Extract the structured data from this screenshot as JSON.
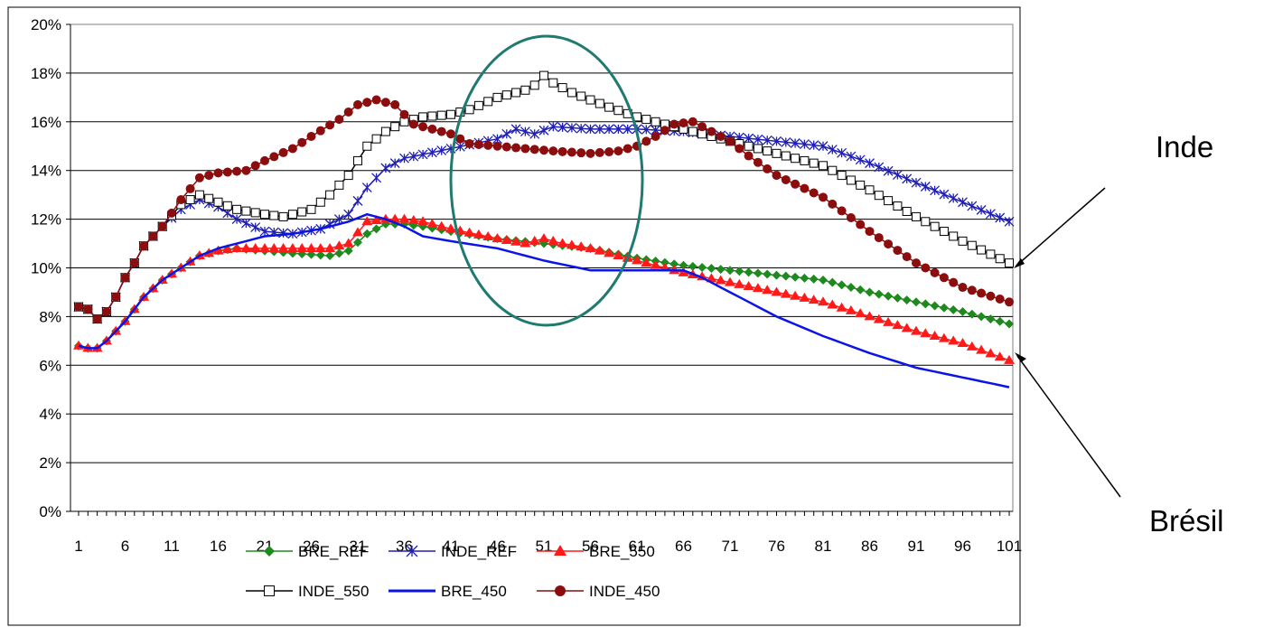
{
  "annotations": {
    "inde": "Inde",
    "bresil": "Brésil"
  },
  "chart_data": {
    "type": "line",
    "title": "",
    "xlabel": "",
    "ylabel": "",
    "ylim": [
      0,
      0.2
    ],
    "yticks": [
      "0%",
      "2%",
      "4%",
      "6%",
      "8%",
      "10%",
      "12%",
      "14%",
      "16%",
      "18%",
      "20%"
    ],
    "xticks": [
      1,
      6,
      11,
      16,
      21,
      26,
      31,
      36,
      41,
      46,
      51,
      56,
      61,
      66,
      71,
      76,
      81,
      86,
      91,
      96,
      101
    ],
    "x": [
      1,
      101
    ],
    "grid": "horizontal",
    "legend_position": "bottom",
    "series": [
      {
        "name": "BRE_REF",
        "color": "#1e8a1e",
        "marker": "diamond",
        "points": [
          [
            1,
            6.8
          ],
          [
            2,
            6.7
          ],
          [
            3,
            6.7
          ],
          [
            4,
            7.0
          ],
          [
            6,
            7.8
          ],
          [
            8,
            8.8
          ],
          [
            10,
            9.5
          ],
          [
            12,
            10.0
          ],
          [
            14,
            10.5
          ],
          [
            16,
            10.7
          ],
          [
            18,
            10.8
          ],
          [
            21,
            10.7
          ],
          [
            24,
            10.6
          ],
          [
            28,
            10.5
          ],
          [
            30,
            10.7
          ],
          [
            32,
            11.4
          ],
          [
            34,
            11.8
          ],
          [
            36,
            11.8
          ],
          [
            38,
            11.7
          ],
          [
            41,
            11.5
          ],
          [
            46,
            11.2
          ],
          [
            51,
            11.0
          ],
          [
            56,
            10.8
          ],
          [
            61,
            10.4
          ],
          [
            66,
            10.1
          ],
          [
            71,
            9.9
          ],
          [
            76,
            9.7
          ],
          [
            81,
            9.5
          ],
          [
            86,
            9.0
          ],
          [
            91,
            8.6
          ],
          [
            96,
            8.2
          ],
          [
            101,
            7.7
          ]
        ]
      },
      {
        "name": "INDE_REF",
        "color": "#1f1fb4",
        "marker": "star",
        "points": [
          [
            1,
            8.4
          ],
          [
            2,
            8.3
          ],
          [
            3,
            7.9
          ],
          [
            4,
            8.2
          ],
          [
            5,
            8.8
          ],
          [
            6,
            9.6
          ],
          [
            7,
            10.2
          ],
          [
            8,
            10.9
          ],
          [
            10,
            11.7
          ],
          [
            12,
            12.4
          ],
          [
            14,
            12.8
          ],
          [
            16,
            12.5
          ],
          [
            18,
            12.0
          ],
          [
            21,
            11.5
          ],
          [
            24,
            11.4
          ],
          [
            27,
            11.6
          ],
          [
            30,
            12.2
          ],
          [
            32,
            13.3
          ],
          [
            34,
            14.1
          ],
          [
            36,
            14.5
          ],
          [
            41,
            14.9
          ],
          [
            46,
            15.3
          ],
          [
            48,
            15.7
          ],
          [
            50,
            15.5
          ],
          [
            52,
            15.8
          ],
          [
            56,
            15.7
          ],
          [
            61,
            15.7
          ],
          [
            66,
            15.6
          ],
          [
            71,
            15.4
          ],
          [
            76,
            15.2
          ],
          [
            81,
            15.0
          ],
          [
            86,
            14.3
          ],
          [
            91,
            13.5
          ],
          [
            96,
            12.7
          ],
          [
            101,
            11.9
          ]
        ]
      },
      {
        "name": "BRE_550",
        "color": "#ff1a1a",
        "marker": "triangle",
        "points": [
          [
            1,
            6.8
          ],
          [
            2,
            6.7
          ],
          [
            3,
            6.7
          ],
          [
            4,
            7.0
          ],
          [
            6,
            7.8
          ],
          [
            8,
            8.8
          ],
          [
            10,
            9.5
          ],
          [
            12,
            10.0
          ],
          [
            14,
            10.5
          ],
          [
            16,
            10.7
          ],
          [
            18,
            10.8
          ],
          [
            21,
            10.8
          ],
          [
            24,
            10.8
          ],
          [
            28,
            10.8
          ],
          [
            30,
            11.0
          ],
          [
            32,
            11.9
          ],
          [
            34,
            12.0
          ],
          [
            36,
            12.0
          ],
          [
            38,
            11.9
          ],
          [
            41,
            11.6
          ],
          [
            46,
            11.2
          ],
          [
            49,
            11.0
          ],
          [
            51,
            11.2
          ],
          [
            53,
            11.0
          ],
          [
            56,
            10.8
          ],
          [
            61,
            10.3
          ],
          [
            66,
            9.8
          ],
          [
            71,
            9.4
          ],
          [
            76,
            9.0
          ],
          [
            81,
            8.6
          ],
          [
            86,
            8.0
          ],
          [
            91,
            7.4
          ],
          [
            96,
            6.9
          ],
          [
            101,
            6.2
          ]
        ]
      },
      {
        "name": "INDE_550",
        "color": "#000000",
        "marker": "square",
        "points": [
          [
            1,
            8.4
          ],
          [
            2,
            8.3
          ],
          [
            3,
            7.9
          ],
          [
            4,
            8.2
          ],
          [
            5,
            8.8
          ],
          [
            6,
            9.6
          ],
          [
            7,
            10.2
          ],
          [
            8,
            10.9
          ],
          [
            10,
            11.7
          ],
          [
            12,
            12.6
          ],
          [
            14,
            13.0
          ],
          [
            16,
            12.7
          ],
          [
            18,
            12.4
          ],
          [
            21,
            12.2
          ],
          [
            23,
            12.1
          ],
          [
            26,
            12.4
          ],
          [
            28,
            13.0
          ],
          [
            30,
            13.8
          ],
          [
            32,
            15.0
          ],
          [
            34,
            15.6
          ],
          [
            36,
            16.0
          ],
          [
            38,
            16.2
          ],
          [
            41,
            16.3
          ],
          [
            43,
            16.5
          ],
          [
            46,
            17.0
          ],
          [
            49,
            17.3
          ],
          [
            50,
            17.5
          ],
          [
            51,
            17.9
          ],
          [
            52,
            17.6
          ],
          [
            54,
            17.2
          ],
          [
            56,
            16.9
          ],
          [
            58,
            16.6
          ],
          [
            61,
            16.2
          ],
          [
            66,
            15.7
          ],
          [
            71,
            15.2
          ],
          [
            76,
            14.7
          ],
          [
            81,
            14.2
          ],
          [
            86,
            13.2
          ],
          [
            91,
            12.1
          ],
          [
            96,
            11.1
          ],
          [
            101,
            10.2
          ]
        ]
      },
      {
        "name": "BRE_450",
        "color": "#0a14e6",
        "marker": "none",
        "points": [
          [
            1,
            6.8
          ],
          [
            2,
            6.7
          ],
          [
            3,
            6.7
          ],
          [
            4,
            7.0
          ],
          [
            6,
            7.8
          ],
          [
            8,
            8.8
          ],
          [
            10,
            9.5
          ],
          [
            12,
            10.0
          ],
          [
            14,
            10.5
          ],
          [
            16,
            10.8
          ],
          [
            18,
            11.0
          ],
          [
            21,
            11.3
          ],
          [
            24,
            11.4
          ],
          [
            27,
            11.6
          ],
          [
            30,
            11.9
          ],
          [
            32,
            12.2
          ],
          [
            34,
            12.0
          ],
          [
            36,
            11.7
          ],
          [
            38,
            11.3
          ],
          [
            41,
            11.1
          ],
          [
            46,
            10.8
          ],
          [
            51,
            10.3
          ],
          [
            56,
            9.9
          ],
          [
            61,
            9.9
          ],
          [
            66,
            9.9
          ],
          [
            68,
            9.6
          ],
          [
            71,
            9.0
          ],
          [
            76,
            8.0
          ],
          [
            81,
            7.2
          ],
          [
            86,
            6.5
          ],
          [
            91,
            5.9
          ],
          [
            96,
            5.5
          ],
          [
            101,
            5.1
          ]
        ]
      },
      {
        "name": "INDE_450",
        "color": "#8b0d0d",
        "marker": "circle",
        "points": [
          [
            1,
            8.4
          ],
          [
            2,
            8.3
          ],
          [
            3,
            7.9
          ],
          [
            4,
            8.2
          ],
          [
            5,
            8.8
          ],
          [
            6,
            9.6
          ],
          [
            7,
            10.2
          ],
          [
            8,
            10.9
          ],
          [
            10,
            11.7
          ],
          [
            12,
            12.8
          ],
          [
            14,
            13.7
          ],
          [
            16,
            13.9
          ],
          [
            19,
            14.0
          ],
          [
            21,
            14.4
          ],
          [
            24,
            14.9
          ],
          [
            26,
            15.4
          ],
          [
            29,
            16.1
          ],
          [
            31,
            16.7
          ],
          [
            33,
            16.9
          ],
          [
            35,
            16.7
          ],
          [
            37,
            15.9
          ],
          [
            41,
            15.5
          ],
          [
            43,
            15.1
          ],
          [
            46,
            15.0
          ],
          [
            49,
            14.9
          ],
          [
            52,
            14.8
          ],
          [
            56,
            14.7
          ],
          [
            59,
            14.8
          ],
          [
            61,
            15.0
          ],
          [
            63,
            15.4
          ],
          [
            65,
            15.9
          ],
          [
            67,
            16.0
          ],
          [
            69,
            15.6
          ],
          [
            71,
            15.2
          ],
          [
            73,
            14.6
          ],
          [
            76,
            13.8
          ],
          [
            81,
            12.9
          ],
          [
            86,
            11.5
          ],
          [
            91,
            10.2
          ],
          [
            96,
            9.2
          ],
          [
            101,
            8.6
          ]
        ]
      }
    ]
  }
}
